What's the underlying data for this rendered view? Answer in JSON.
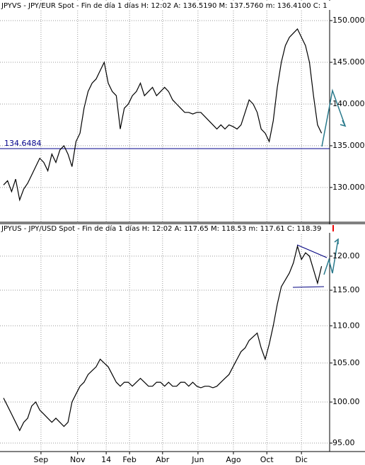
{
  "chart_data": [
    {
      "type": "line",
      "title": "JPYVS - JPY/EUR Spot - Fin de día 1 días  H: 12:02  A: 136.5190  M: 137.5760  m: 136.4100  C: 1",
      "color": "#000000",
      "x": [
        0,
        1,
        2,
        3,
        4,
        5,
        6,
        7,
        8,
        9,
        10,
        11,
        12,
        13,
        14,
        15,
        16,
        17,
        18,
        19,
        20,
        21,
        22,
        23,
        24,
        25,
        26,
        27,
        28,
        29,
        30,
        31,
        32,
        33,
        34,
        35,
        36,
        37,
        38,
        39,
        40,
        41,
        42,
        43,
        44,
        45,
        46,
        47,
        48,
        49,
        50,
        51,
        52,
        53,
        54,
        55,
        56,
        57,
        58,
        59,
        60,
        61,
        62,
        63,
        64,
        65,
        66,
        67,
        68,
        69,
        70,
        71,
        72,
        73,
        74,
        75,
        76,
        77,
        78,
        79
      ],
      "values": [
        130.3,
        130.8,
        129.5,
        131,
        128.5,
        129.8,
        130.5,
        131.5,
        132.5,
        133.5,
        133,
        132,
        134,
        133,
        134.5,
        135,
        134,
        132.5,
        135.5,
        136.5,
        139.5,
        141.5,
        142.5,
        143,
        144,
        145,
        142.5,
        141.5,
        141,
        137,
        139.5,
        140,
        141,
        141.5,
        142.5,
        141,
        141.5,
        142,
        141,
        141.5,
        142,
        141.5,
        140.5,
        140,
        139.5,
        139,
        139,
        138.8,
        139,
        139,
        138.5,
        138,
        137.5,
        137,
        137.5,
        137,
        137.5,
        137.3,
        137,
        137.5,
        139,
        140.5,
        140,
        139,
        137,
        136.5,
        135.5,
        138,
        142,
        145,
        147,
        148,
        148.5,
        149,
        148,
        147,
        145,
        141,
        137.5,
        136.5
      ],
      "xlim": [
        0,
        81
      ],
      "ylim": [
        126,
        152.3
      ],
      "yticks": [
        {
          "value": 130,
          "label": "130.000"
        },
        {
          "value": 135,
          "label": "135.000"
        },
        {
          "value": 140,
          "label": "140.000"
        },
        {
          "value": 145,
          "label": "145.000"
        },
        {
          "value": 150,
          "label": "150.000"
        }
      ],
      "hline": 134.6484,
      "hline_color": "#00008b",
      "grid": true
    },
    {
      "type": "line",
      "title": "JPYUS - JPY/USD Spot - Fin de día 1 días  H: 12:02  A: 117.65  M: 118.53  m: 117.61  C: 118.39",
      "color": "#000000",
      "x": [
        0,
        1,
        2,
        3,
        4,
        5,
        6,
        7,
        8,
        9,
        10,
        11,
        12,
        13,
        14,
        15,
        16,
        17,
        18,
        19,
        20,
        21,
        22,
        23,
        24,
        25,
        26,
        27,
        28,
        29,
        30,
        31,
        32,
        33,
        34,
        35,
        36,
        37,
        38,
        39,
        40,
        41,
        42,
        43,
        44,
        45,
        46,
        47,
        48,
        49,
        50,
        51,
        52,
        53,
        54,
        55,
        56,
        57,
        58,
        59,
        60,
        61,
        62,
        63,
        64,
        65,
        66,
        67,
        68,
        69,
        70,
        71,
        72,
        73,
        74,
        75,
        76,
        77,
        78,
        79
      ],
      "values": [
        100.5,
        99.5,
        98.5,
        97.5,
        96.5,
        97.5,
        98,
        99.5,
        100,
        99,
        98.5,
        98,
        97.5,
        98,
        97.5,
        97,
        97.5,
        100,
        101,
        102,
        102.5,
        103.5,
        104,
        104.5,
        105.5,
        105,
        104.5,
        103.5,
        102.5,
        102,
        102.5,
        102.5,
        102,
        102.5,
        103,
        102.5,
        102,
        102,
        102.5,
        102.5,
        102,
        102.5,
        102,
        102,
        102.5,
        102.5,
        102,
        102.5,
        102,
        101.8,
        102,
        102,
        101.8,
        102,
        102.5,
        103,
        103.5,
        104.5,
        105.5,
        106.5,
        107,
        108,
        108.5,
        109,
        107,
        105.5,
        107.5,
        110,
        113,
        115.5,
        116.5,
        117.5,
        119,
        121.5,
        119.5,
        120.5,
        120,
        118,
        116,
        118.5
      ],
      "xlim": [
        0,
        81
      ],
      "ylim": [
        94,
        123
      ],
      "log_scale": true,
      "yticks": [
        {
          "value": 95,
          "label": "95.00"
        },
        {
          "value": 100,
          "label": "100.00"
        },
        {
          "value": 105,
          "label": "105.00"
        },
        {
          "value": 110,
          "label": "110.00"
        },
        {
          "value": 115,
          "label": "115.00"
        },
        {
          "value": 120,
          "label": "120.00"
        }
      ],
      "xticks": [
        {
          "value": 9.3,
          "label": "Sep"
        },
        {
          "value": 18.4,
          "label": "Nov"
        },
        {
          "value": 25.5,
          "label": "14"
        },
        {
          "value": 31.3,
          "label": "Feb"
        },
        {
          "value": 39.5,
          "label": "Abr"
        },
        {
          "value": 48.3,
          "label": "Jun"
        },
        {
          "value": 57.1,
          "label": "Ago"
        },
        {
          "value": 65.4,
          "label": "Oct"
        },
        {
          "value": 74,
          "label": "Dic"
        }
      ],
      "grid": true
    }
  ]
}
